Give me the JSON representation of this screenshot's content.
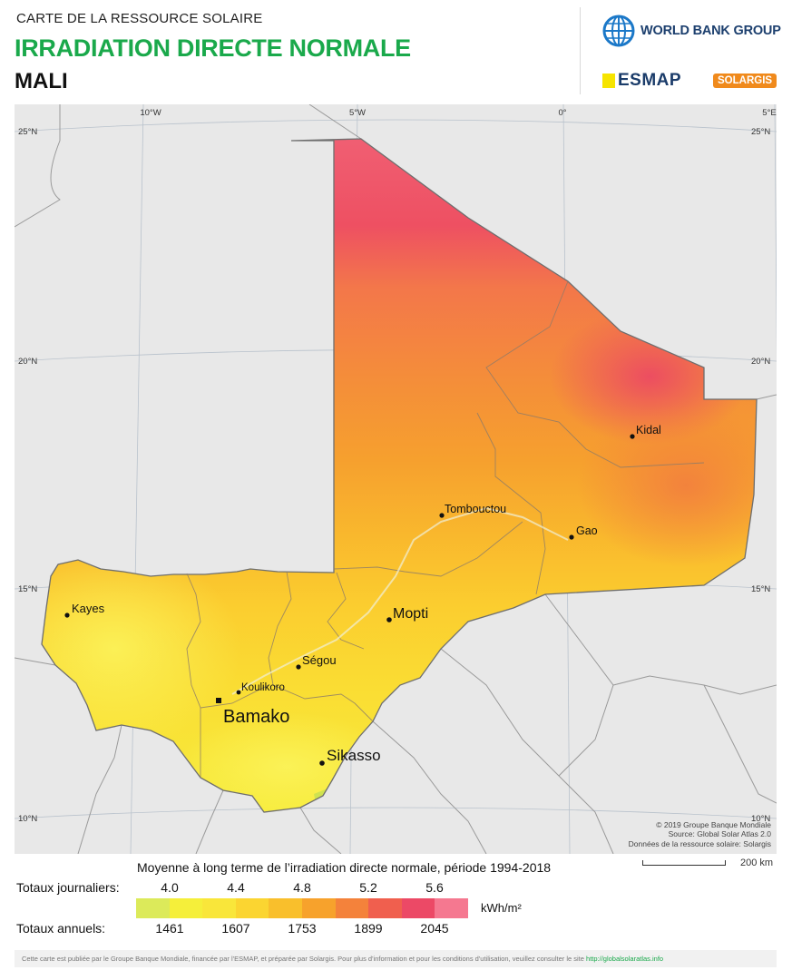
{
  "header": {
    "kicker": "CARTE DE LA RESSOURCE SOLAIRE",
    "title": "IRRADIATION DIRECTE NORMALE",
    "country": "MALI",
    "logos": {
      "world_bank": "WORLD BANK GROUP",
      "esmap": "ESMAP",
      "solargis": "SOLARGIS"
    }
  },
  "map": {
    "graticule": {
      "longitudes": [
        "10°W",
        "5°W",
        "0°",
        "5°E"
      ],
      "latitudes": [
        "25°N",
        "20°N",
        "15°N",
        "10°N"
      ]
    },
    "cities": [
      {
        "name": "Kidal"
      },
      {
        "name": "Tombouctou"
      },
      {
        "name": "Gao"
      },
      {
        "name": "Kayes"
      },
      {
        "name": "Mopti"
      },
      {
        "name": "Ségou"
      },
      {
        "name": "Koulikoro"
      },
      {
        "name": "Bamako",
        "capital": true
      },
      {
        "name": "Sikasso"
      }
    ],
    "credits": [
      "© 2019 Groupe Banque Mondiale",
      "Source: Global Solar Atlas 2.0",
      "Données de la ressource solaire: Solargis"
    ],
    "scale_label": "200 km"
  },
  "legend": {
    "caption": "Moyenne à long terme de l’irradiation directe normale, période 1994-2018",
    "daily_label": "Totaux journaliers:",
    "daily_ticks": [
      "4.0",
      "4.4",
      "4.8",
      "5.2",
      "5.6"
    ],
    "annual_label": "Totaux annuels:",
    "annual_ticks": [
      "1461",
      "1607",
      "1753",
      "1899",
      "2045"
    ],
    "unit": "kWh/m²",
    "colors": [
      "#dcea5a",
      "#f5ef3a",
      "#f9e63a",
      "#fbd531",
      "#f9bf2c",
      "#f7a22c",
      "#f4823b",
      "#f05f4e",
      "#ec4966",
      "#f57890"
    ]
  },
  "footer": {
    "text": "Cette carte est publiée par le Groupe Banque Mondiale, financée par l'ESMAP, et préparée par Solargis. Pour plus d'information et pour les conditions d'utilisation, veuillez consulter le site",
    "link": "http://globalsolaratlas.info"
  }
}
